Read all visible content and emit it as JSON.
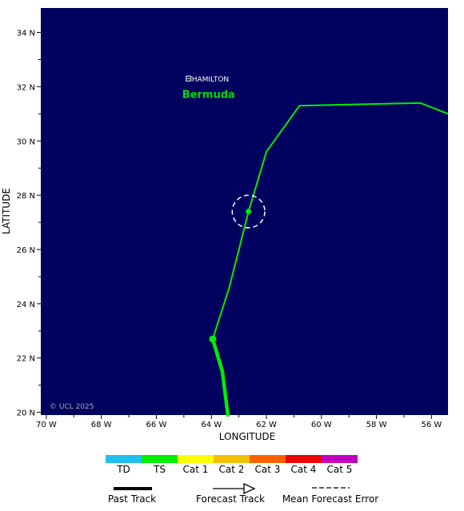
{
  "map": {
    "x_axis_title": "LONGITUDE",
    "y_axis_title": "LATITUDE",
    "lon_range": [
      -70.2,
      -55.4
    ],
    "lat_range": [
      19.9,
      34.9
    ],
    "lon_ticks": [
      {
        "value": -70,
        "label": "70 W"
      },
      {
        "value": -68,
        "label": "68 W"
      },
      {
        "value": -66,
        "label": "66 W"
      },
      {
        "value": -64,
        "label": "64 W"
      },
      {
        "value": -62,
        "label": "62 W"
      },
      {
        "value": -60,
        "label": "60 W"
      },
      {
        "value": -58,
        "label": "58 W"
      },
      {
        "value": -56,
        "label": "56 W"
      }
    ],
    "lat_ticks": [
      {
        "value": 20,
        "label": "20 N"
      },
      {
        "value": 22,
        "label": "22 N"
      },
      {
        "value": 24,
        "label": "24 N"
      },
      {
        "value": 26,
        "label": "26 N"
      },
      {
        "value": 28,
        "label": "28 N"
      },
      {
        "value": 30,
        "label": "30 N"
      },
      {
        "value": 32,
        "label": "32 N"
      },
      {
        "value": 34,
        "label": "34 N"
      }
    ],
    "ocean_color": "#00005e",
    "track_color": "#00ee00",
    "city": {
      "label": "HAMILTON",
      "lon": -64.8,
      "lat": 32.3
    },
    "region_label": {
      "text": "Bermuda",
      "lon": -64.1,
      "lat": 31.7,
      "color": "#00dd00"
    },
    "copyright": "© UCL 2025",
    "past_track": [
      {
        "lon": -63.4,
        "lat": 19.9
      },
      {
        "lon": -63.6,
        "lat": 21.5
      },
      {
        "lon": -63.95,
        "lat": 22.7
      }
    ],
    "forecast_track": [
      {
        "lon": -63.95,
        "lat": 22.7
      },
      {
        "lon": -63.35,
        "lat": 24.6
      },
      {
        "lon": -62.65,
        "lat": 27.4
      },
      {
        "lon": -62.0,
        "lat": 29.6
      },
      {
        "lon": -60.8,
        "lat": 31.3
      },
      {
        "lon": -56.4,
        "lat": 31.4
      },
      {
        "lon": -55.4,
        "lat": 31.0
      }
    ],
    "storm_points": [
      {
        "lon": -63.95,
        "lat": 22.7
      },
      {
        "lon": -62.65,
        "lat": 27.4
      }
    ],
    "error_circle": {
      "lon": -62.65,
      "lat": 27.4,
      "radius_deg": 0.6
    }
  },
  "legend": {
    "categories": [
      {
        "label": "TD",
        "color": "#1ebff0"
      },
      {
        "label": "TS",
        "color": "#00ee00"
      },
      {
        "label": "Cat 1",
        "color": "#ffff00"
      },
      {
        "label": "Cat 2",
        "color": "#f5c000"
      },
      {
        "label": "Cat 3",
        "color": "#ff6000"
      },
      {
        "label": "Cat 4",
        "color": "#ee0000"
      },
      {
        "label": "Cat 5",
        "color": "#c000c0"
      }
    ],
    "past_track_label": "Past Track",
    "forecast_track_label": "Forecast Track",
    "mean_error_label": "Mean Forecast Error"
  }
}
